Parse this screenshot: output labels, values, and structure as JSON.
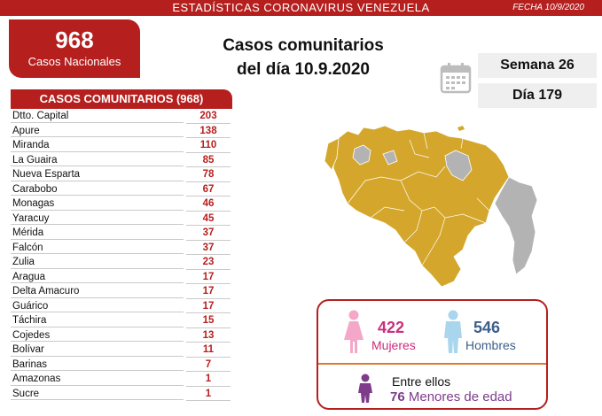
{
  "header": {
    "title": "ESTADÍSTICAS CORONAVIRUS VENEZUELA",
    "date": "FECHA 10/9/2020"
  },
  "national": {
    "count": "968",
    "label": "Casos Nacionales"
  },
  "headline": {
    "line1": "Casos comunitarios",
    "line2": "del día 10.9.2020"
  },
  "calendar": {
    "icon": "calendar-icon",
    "week": "Semana 26",
    "day": "Día 179"
  },
  "table": {
    "title": "CASOS COMUNITARIOS (968)",
    "rows": [
      {
        "name": "Dtto. Capital",
        "value": "203"
      },
      {
        "name": "Apure",
        "value": "138"
      },
      {
        "name": "Miranda",
        "value": "110"
      },
      {
        "name": "La Guaira",
        "value": "85"
      },
      {
        "name": "Nueva Esparta",
        "value": "78"
      },
      {
        "name": "Carabobo",
        "value": "67"
      },
      {
        "name": "Monagas",
        "value": "46"
      },
      {
        "name": "Yaracuy",
        "value": "45"
      },
      {
        "name": "Mérida",
        "value": "37"
      },
      {
        "name": "Falcón",
        "value": "37"
      },
      {
        "name": "Zulia",
        "value": "23"
      },
      {
        "name": "Aragua",
        "value": "17"
      },
      {
        "name": "Delta Amacuro",
        "value": "17"
      },
      {
        "name": "Guárico",
        "value": "17"
      },
      {
        "name": "Táchira",
        "value": "15"
      },
      {
        "name": "Cojedes",
        "value": "13"
      },
      {
        "name": "Bolívar",
        "value": "11"
      },
      {
        "name": "Barinas",
        "value": "7"
      },
      {
        "name": "Amazonas",
        "value": "1"
      },
      {
        "name": "Sucre",
        "value": "1"
      }
    ]
  },
  "map": {
    "icon": "venezuela-map",
    "affected_color": "#d4a72c",
    "unaffected_color": "#b3b3b3"
  },
  "gender": {
    "women_count": "422",
    "women_label": "Mujeres",
    "women_color": "#f4a7c8",
    "men_count": "546",
    "men_label": "Hombres",
    "men_color": "#a9d6ec",
    "among_label": "Entre ellos",
    "minors_count": "76",
    "minors_label": "Menores de edad",
    "minors_color": "#7e3c8b"
  }
}
